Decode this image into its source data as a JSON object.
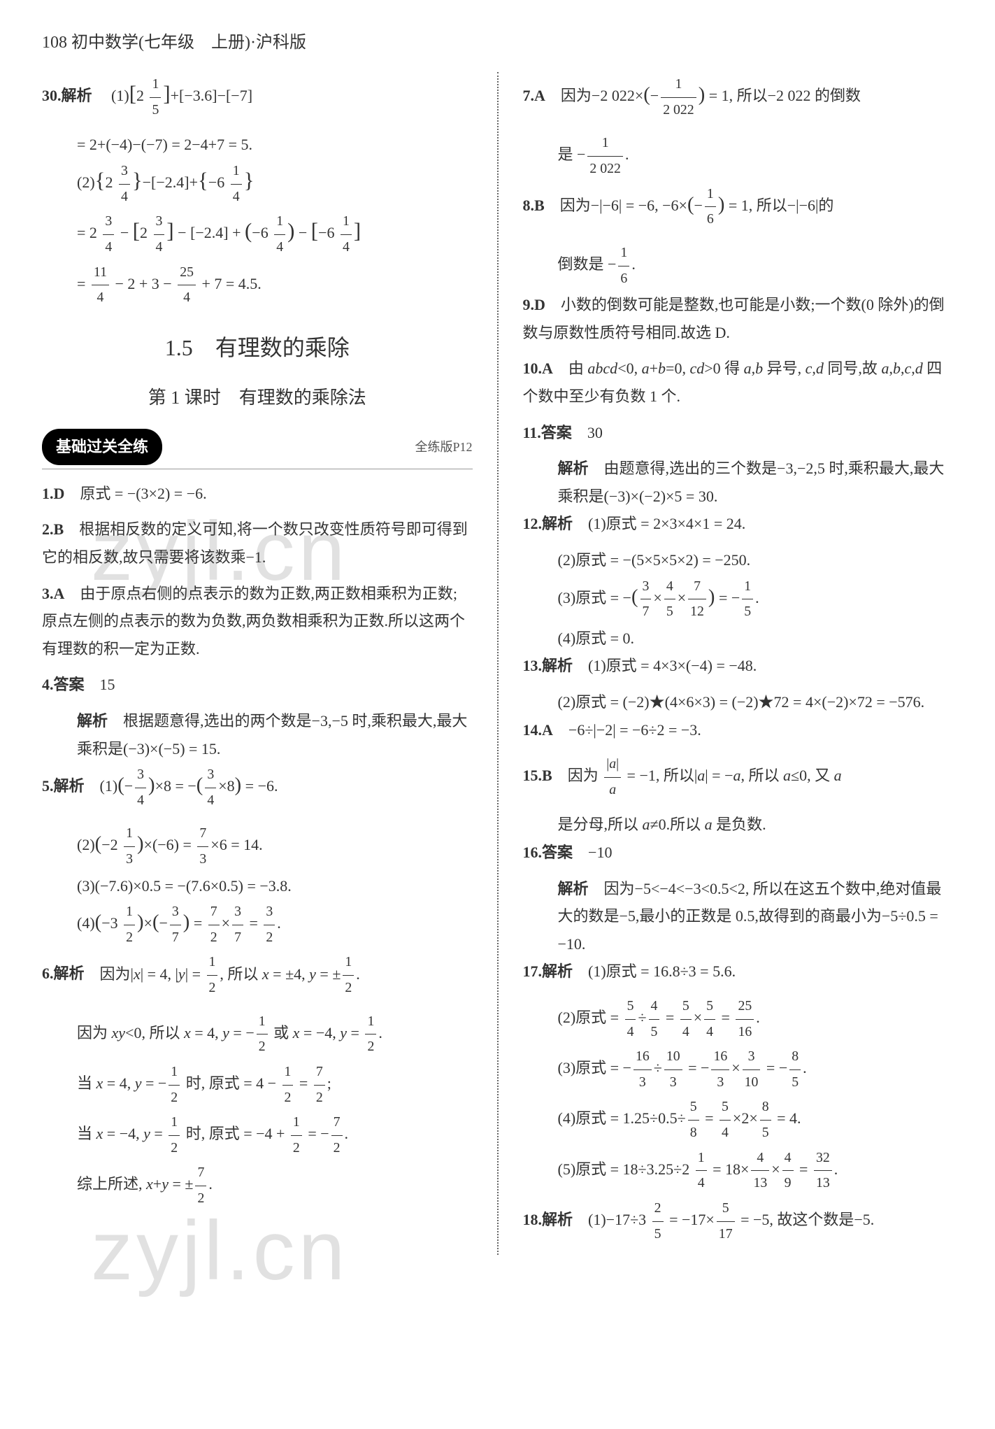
{
  "header": "108 初中数学(七年级　上册)·沪科版",
  "watermark": "zyjl.cn",
  "section_title": "1.5　有理数的乘除",
  "subsection_title": "第 1 课时　有理数的乘除法",
  "badge_label": "基础过关全练",
  "page_ref": "全练版P12",
  "left": {
    "q30_label": "30.解析",
    "q30_1a": "(1)[2 ¹⁄₅]+[−3.6]−[−7]",
    "q30_1b": "= 2+(−4)−(−7) = 2−4+7 = 5.",
    "q30_2a": "(2){2 ³⁄₄}−[−2.4]+{−6 ¹⁄₄}",
    "q30_2b": "= 2 ³⁄₄ − [2 ³⁄₄] − [−2.4] + (−6 ¹⁄₄) − [−6 ¹⁄₄]",
    "q30_2c": "= ¹¹⁄₄ − 2 + 3 − ²⁵⁄₄ + 7 = 4.5.",
    "q1_label": "1.D",
    "q1_text": "原式 = −(3×2) = −6.",
    "q2_label": "2.B",
    "q2_text": "根据相反数的定义可知,将一个数只改变性质符号即可得到它的相反数,故只需要将该数乘−1.",
    "q3_label": "3.A",
    "q3_text": "由于原点右侧的点表示的数为正数,两正数相乘积为正数;原点左侧的点表示的数为负数,两负数相乘积为正数.所以这两个有理数的积一定为正数.",
    "q4_label": "4.答案",
    "q4_ans": "15",
    "q4_exp_label": "解析",
    "q4_exp": "根据题意得,选出的两个数是−3,−5 时,乘积最大,最大乘积是(−3)×(−5) = 15.",
    "q5_label": "5.解析",
    "q5_1": "(1)(−³⁄₄)×8 = −(³⁄₄×8) = −6.",
    "q5_2": "(2)(−2 ¹⁄₃)×(−6) = ⁷⁄₃×6 = 14.",
    "q5_3": "(3)(−7.6)×0.5 = −(7.6×0.5) = −3.8.",
    "q5_4": "(4)(−3 ¹⁄₂)×(−³⁄₇) = ⁷⁄₂×³⁄₇ = ³⁄₂.",
    "q6_label": "6.解析",
    "q6_a": "因为|x| = 4, |y| = ¹⁄₂, 所以 x = ±4, y = ±¹⁄₂.",
    "q6_b": "因为 xy<0, 所以 x = 4, y = −¹⁄₂ 或 x = −4, y = ¹⁄₂.",
    "q6_c": "当 x = 4, y = −¹⁄₂ 时, 原式 = 4 − ¹⁄₂ = ⁷⁄₂;",
    "q6_d": "当 x = −4, y = ¹⁄₂ 时, 原式 = −4 + ¹⁄₂ = −⁷⁄₂.",
    "q6_e": "综上所述, x+y = ±⁷⁄₂."
  },
  "right": {
    "q7_label": "7.A",
    "q7_text": "因为−2 022×(−¹⁄₂ ₀₂₂) = 1, 所以−2 022 的倒数是 −¹⁄₂ ₀₂₂.",
    "q8_label": "8.B",
    "q8_text": "因为−|−6| = −6, −6×(−¹⁄₆) = 1, 所以−|−6|的倒数是 −¹⁄₆.",
    "q9_label": "9.D",
    "q9_text": "小数的倒数可能是整数,也可能是小数;一个数(0 除外)的倒数与原数性质符号相同.故选 D.",
    "q10_label": "10.A",
    "q10_text": "由 abcd<0, a+b=0, cd>0 得 a,b 异号, c,d 同号,故 a,b,c,d 四个数中至少有负数 1 个.",
    "q11_label": "11.答案",
    "q11_ans": "30",
    "q11_exp_label": "解析",
    "q11_exp": "由题意得,选出的三个数是−3,−2,5 时,乘积最大,最大乘积是(−3)×(−2)×5 = 30.",
    "q12_label": "12.解析",
    "q12_1": "(1)原式 = 2×3×4×1 = 24.",
    "q12_2": "(2)原式 = −(5×5×5×2) = −250.",
    "q12_3": "(3)原式 = −(³⁄₇×⁴⁄₅×⁷⁄₁₂) = −¹⁄₅.",
    "q12_4": "(4)原式 = 0.",
    "q13_label": "13.解析",
    "q13_1": "(1)原式 = 4×3×(−4) = −48.",
    "q13_2": "(2)原式 = (−2)★(4×6×3) = (−2)★72 = 4×(−2)×72 = −576.",
    "q14_label": "14.A",
    "q14_text": "−6÷|−2| = −6÷2 = −3.",
    "q15_label": "15.B",
    "q15_text": "因为 |a|/a = −1, 所以|a| = −a, 所以 a≤0, 又 a 是分母,所以 a≠0.所以 a 是负数.",
    "q16_label": "16.答案",
    "q16_ans": "−10",
    "q16_exp_label": "解析",
    "q16_exp": "因为−5<−4<−3<0.5<2, 所以在这五个数中,绝对值最大的数是−5,最小的正数是 0.5,故得到的商最小为−5÷0.5 = −10.",
    "q17_label": "17.解析",
    "q17_1": "(1)原式 = 16.8÷3 = 5.6.",
    "q17_2": "(2)原式 = ⁵⁄₄÷⁴⁄₅ = ⁵⁄₄×⁵⁄₄ = ²⁵⁄₁₆.",
    "q17_3": "(3)原式 = −¹⁶⁄₃÷¹⁰⁄₃ = −¹⁶⁄₃×³⁄₁₀ = −⁸⁄₅.",
    "q17_4": "(4)原式 = 1.25÷0.5÷⁵⁄₈ = ⁵⁄₄×2×⁸⁄₅ = 4.",
    "q17_5": "(5)原式 = 18÷3.25÷2 ¹⁄₄ = 18×⁴⁄₁₃×⁴⁄₉ = ³²⁄₁₃.",
    "q18_label": "18.解析",
    "q18_text": "(1)−17÷3 ²⁄₅ = −17×⁵⁄₁₇ = −5, 故这个数是−5."
  }
}
